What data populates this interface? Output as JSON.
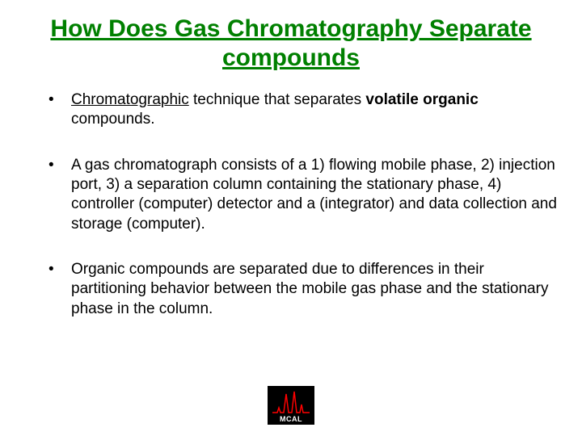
{
  "title": "How Does Gas Chromatography Separate compounds",
  "title_color": "#008000",
  "bullets": [
    {
      "parts": [
        {
          "text": "Chromatographic",
          "underline": true
        },
        {
          "text": " technique that separates "
        },
        {
          "text": "volatile organic",
          "bold": true
        },
        {
          "text": " compounds."
        }
      ]
    },
    {
      "parts": [
        {
          "text": "A gas chromatograph consists of a 1) flowing mobile phase, 2) injection port, 3) a separation column containing the stationary phase, 4) controller (computer) detector and a (integrator) and data collection and storage (computer)."
        }
      ]
    },
    {
      "parts": [
        {
          "text": "Organic compounds are separated due to differences in their partitioning behavior between the mobile gas phase and the stationary phase in the column."
        }
      ]
    }
  ],
  "logo": {
    "label": "MCAL",
    "background": "#000000",
    "peak_color": "#ff0000",
    "text_color": "#ffffff"
  },
  "background_color": "#ffffff",
  "text_color": "#000000",
  "bullet_fontsize": 19,
  "title_fontsize": 30
}
